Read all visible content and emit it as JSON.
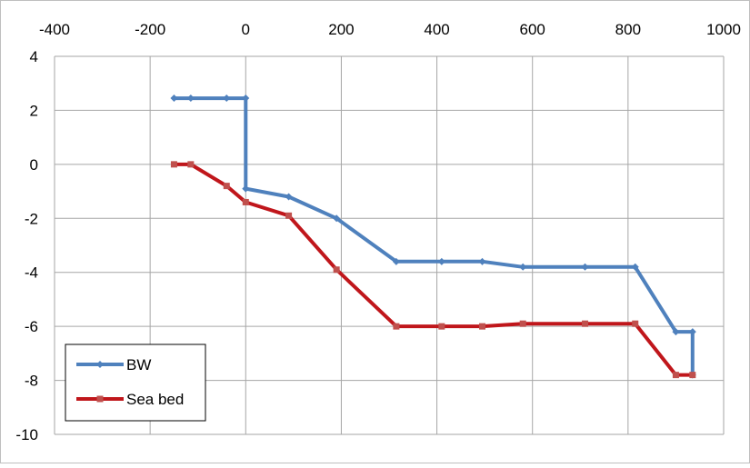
{
  "chart_data": {
    "type": "line",
    "title": "",
    "xlabel": "",
    "ylabel": "",
    "xlim": [
      -400,
      1000
    ],
    "ylim": [
      -10,
      4
    ],
    "x_ticks": [
      -400,
      -200,
      0,
      200,
      400,
      600,
      800,
      1000
    ],
    "y_ticks": [
      -10,
      -8,
      -6,
      -4,
      -2,
      0,
      2,
      4
    ],
    "x_tick_labels": [
      "-400",
      "-200",
      "0",
      "200",
      "400",
      "600",
      "800",
      "1000"
    ],
    "y_tick_labels": [
      "-10",
      "-8",
      "-6",
      "-4",
      "-2",
      "0",
      "2",
      "4"
    ],
    "x_axis_position": "top",
    "grid": true,
    "legend_position": "bottom-left",
    "series": [
      {
        "name": "BW",
        "color": "#4f81bd",
        "marker": "diamond",
        "points": [
          [
            -150,
            2.45
          ],
          [
            -115,
            2.45
          ],
          [
            -40,
            2.45
          ],
          [
            0,
            2.45
          ],
          [
            0,
            -0.9
          ],
          [
            90,
            -1.2
          ],
          [
            190,
            -2.0
          ],
          [
            315,
            -3.6
          ],
          [
            410,
            -3.6
          ],
          [
            495,
            -3.6
          ],
          [
            580,
            -3.8
          ],
          [
            710,
            -3.8
          ],
          [
            815,
            -3.8
          ],
          [
            900,
            -6.2
          ],
          [
            935,
            -6.2
          ],
          [
            935,
            -7.8
          ]
        ]
      },
      {
        "name": "Sea bed",
        "color": "#c0161b",
        "marker": "square",
        "points": [
          [
            -150,
            0.0
          ],
          [
            -115,
            0.0
          ],
          [
            -40,
            -0.8
          ],
          [
            0,
            -1.4
          ],
          [
            90,
            -1.9
          ],
          [
            190,
            -3.9
          ],
          [
            315,
            -6.0
          ],
          [
            410,
            -6.0
          ],
          [
            495,
            -6.0
          ],
          [
            580,
            -5.9
          ],
          [
            710,
            -5.9
          ],
          [
            815,
            -5.9
          ],
          [
            900,
            -7.8
          ],
          [
            935,
            -7.8
          ]
        ]
      }
    ]
  }
}
